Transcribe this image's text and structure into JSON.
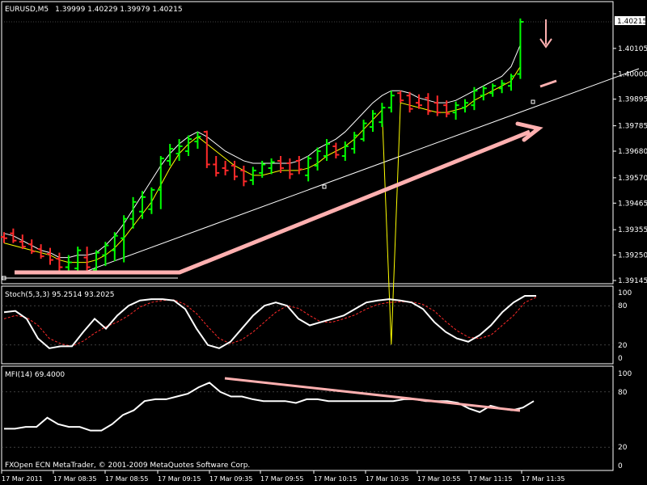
{
  "header": {
    "symbol": "EURUSD,M5",
    "ohlc": "1.39999 1.40229 1.39979 1.40215"
  },
  "current_price_label": "1.40215",
  "footer": "FXOpen ECN MetaTrader, © 2001-2009 MetaQuotes Software Corp.",
  "colors": {
    "up": "#00ff00",
    "down": "#ff2a2a",
    "ma_fast": "#ffff00",
    "ma_slow": "#ffffff",
    "stoch_main": "#ffffff",
    "stoch_signal": "#ff2a2a",
    "annotation": "#ffb0b0",
    "grid_border": "#ffffff"
  },
  "chart_data": [
    {
      "type": "candlestick",
      "panel": "main",
      "title": "EURUSD,M5",
      "y_ticks": [
        "1.40215",
        "1.40105",
        "1.40000",
        "1.39895",
        "1.39785",
        "1.39680",
        "1.39570",
        "1.39465",
        "1.39355",
        "1.39250",
        "1.39145"
      ],
      "ylim": [
        1.39145,
        1.40215
      ],
      "x_ticks": [
        "17 Mar 2011",
        "17 Mar 08:35",
        "17 Mar 08:55",
        "17 Mar 09:15",
        "17 Mar 09:35",
        "17 Mar 09:55",
        "17 Mar 10:15",
        "17 Mar 10:35",
        "17 Mar 10:55",
        "17 Mar 11:15",
        "17 Mar 11:35"
      ],
      "bars": [
        {
          "x": 0,
          "o": 1.39325,
          "h": 1.39345,
          "l": 1.393,
          "c": 1.3932
        },
        {
          "x": 1,
          "o": 1.3934,
          "h": 1.3936,
          "l": 1.393,
          "c": 1.3931
        },
        {
          "x": 2,
          "o": 1.39305,
          "h": 1.39335,
          "l": 1.39275,
          "c": 1.39285
        },
        {
          "x": 3,
          "o": 1.39295,
          "h": 1.39315,
          "l": 1.39255,
          "c": 1.39265
        },
        {
          "x": 4,
          "o": 1.39275,
          "h": 1.39295,
          "l": 1.39235,
          "c": 1.39245
        },
        {
          "x": 5,
          "o": 1.39255,
          "h": 1.3928,
          "l": 1.3921,
          "c": 1.3923
        },
        {
          "x": 6,
          "o": 1.39235,
          "h": 1.3926,
          "l": 1.3917,
          "c": 1.392
        },
        {
          "x": 7,
          "o": 1.392,
          "h": 1.3925,
          "l": 1.3918,
          "c": 1.3922
        },
        {
          "x": 8,
          "o": 1.39195,
          "h": 1.39285,
          "l": 1.39185,
          "c": 1.3927
        },
        {
          "x": 9,
          "o": 1.3924,
          "h": 1.39285,
          "l": 1.39185,
          "c": 1.392
        },
        {
          "x": 10,
          "o": 1.3919,
          "h": 1.3927,
          "l": 1.39175,
          "c": 1.3926
        },
        {
          "x": 11,
          "o": 1.3925,
          "h": 1.39305,
          "l": 1.39205,
          "c": 1.3929
        },
        {
          "x": 12,
          "o": 1.3927,
          "h": 1.39345,
          "l": 1.39225,
          "c": 1.3933
        },
        {
          "x": 13,
          "o": 1.3932,
          "h": 1.39415,
          "l": 1.3922,
          "c": 1.394
        },
        {
          "x": 14,
          "o": 1.394,
          "h": 1.3949,
          "l": 1.3936,
          "c": 1.3947
        },
        {
          "x": 15,
          "o": 1.3943,
          "h": 1.39515,
          "l": 1.394,
          "c": 1.3949
        },
        {
          "x": 16,
          "o": 1.3944,
          "h": 1.3953,
          "l": 1.3942,
          "c": 1.3952
        },
        {
          "x": 17,
          "o": 1.3952,
          "h": 1.3966,
          "l": 1.3944,
          "c": 1.3965
        },
        {
          "x": 18,
          "o": 1.3964,
          "h": 1.3971,
          "l": 1.3962,
          "c": 1.3969
        },
        {
          "x": 19,
          "o": 1.3967,
          "h": 1.3973,
          "l": 1.3964,
          "c": 1.397
        },
        {
          "x": 20,
          "o": 1.3968,
          "h": 1.39745,
          "l": 1.3966,
          "c": 1.3973
        },
        {
          "x": 21,
          "o": 1.3972,
          "h": 1.3976,
          "l": 1.3969,
          "c": 1.3974
        },
        {
          "x": 22,
          "o": 1.3976,
          "h": 1.39765,
          "l": 1.3961,
          "c": 1.39625
        },
        {
          "x": 23,
          "o": 1.39625,
          "h": 1.3966,
          "l": 1.39575,
          "c": 1.3959
        },
        {
          "x": 24,
          "o": 1.3961,
          "h": 1.3964,
          "l": 1.3958,
          "c": 1.396
        },
        {
          "x": 25,
          "o": 1.3962,
          "h": 1.3964,
          "l": 1.3956,
          "c": 1.39575
        },
        {
          "x": 26,
          "o": 1.396,
          "h": 1.3962,
          "l": 1.39535,
          "c": 1.39555
        },
        {
          "x": 27,
          "o": 1.3956,
          "h": 1.39615,
          "l": 1.3954,
          "c": 1.396
        },
        {
          "x": 28,
          "o": 1.3959,
          "h": 1.3964,
          "l": 1.3957,
          "c": 1.39625
        },
        {
          "x": 29,
          "o": 1.3961,
          "h": 1.3965,
          "l": 1.39585,
          "c": 1.39635
        },
        {
          "x": 30,
          "o": 1.3964,
          "h": 1.3966,
          "l": 1.3959,
          "c": 1.3961
        },
        {
          "x": 31,
          "o": 1.3963,
          "h": 1.3965,
          "l": 1.39565,
          "c": 1.39585
        },
        {
          "x": 32,
          "o": 1.3964,
          "h": 1.3966,
          "l": 1.39585,
          "c": 1.39605
        },
        {
          "x": 33,
          "o": 1.3958,
          "h": 1.3966,
          "l": 1.39555,
          "c": 1.3965
        },
        {
          "x": 34,
          "o": 1.3962,
          "h": 1.39695,
          "l": 1.396,
          "c": 1.3968
        },
        {
          "x": 35,
          "o": 1.3966,
          "h": 1.3973,
          "l": 1.3964,
          "c": 1.3971
        },
        {
          "x": 36,
          "o": 1.397,
          "h": 1.39715,
          "l": 1.3965,
          "c": 1.39665
        },
        {
          "x": 37,
          "o": 1.3966,
          "h": 1.3972,
          "l": 1.3964,
          "c": 1.397
        },
        {
          "x": 38,
          "o": 1.3969,
          "h": 1.3976,
          "l": 1.3967,
          "c": 1.39745
        },
        {
          "x": 39,
          "o": 1.3973,
          "h": 1.3981,
          "l": 1.3972,
          "c": 1.39795
        },
        {
          "x": 40,
          "o": 1.3978,
          "h": 1.3985,
          "l": 1.3976,
          "c": 1.39835
        },
        {
          "x": 41,
          "o": 1.398,
          "h": 1.3988,
          "l": 1.3978,
          "c": 1.3986
        },
        {
          "x": 42,
          "o": 1.3986,
          "h": 1.3993,
          "l": 1.3984,
          "c": 1.3991
        },
        {
          "x": 43,
          "o": 1.3992,
          "h": 1.3993,
          "l": 1.3988,
          "c": 1.3989
        },
        {
          "x": 44,
          "o": 1.3991,
          "h": 1.39925,
          "l": 1.3984,
          "c": 1.39855
        },
        {
          "x": 45,
          "o": 1.3988,
          "h": 1.39915,
          "l": 1.39855,
          "c": 1.3987
        },
        {
          "x": 46,
          "o": 1.399,
          "h": 1.3992,
          "l": 1.3983,
          "c": 1.39845
        },
        {
          "x": 47,
          "o": 1.3988,
          "h": 1.3991,
          "l": 1.39825,
          "c": 1.3984
        },
        {
          "x": 48,
          "o": 1.3987,
          "h": 1.3989,
          "l": 1.3982,
          "c": 1.39835
        },
        {
          "x": 49,
          "o": 1.3984,
          "h": 1.39885,
          "l": 1.3981,
          "c": 1.3987
        },
        {
          "x": 50,
          "o": 1.3986,
          "h": 1.39895,
          "l": 1.3984,
          "c": 1.3988
        },
        {
          "x": 51,
          "o": 1.3987,
          "h": 1.39945,
          "l": 1.3985,
          "c": 1.3993
        },
        {
          "x": 52,
          "o": 1.3991,
          "h": 1.3995,
          "l": 1.3989,
          "c": 1.3994
        },
        {
          "x": 53,
          "o": 1.3992,
          "h": 1.3996,
          "l": 1.39905,
          "c": 1.3995
        },
        {
          "x": 54,
          "o": 1.3994,
          "h": 1.39975,
          "l": 1.3992,
          "c": 1.3996
        },
        {
          "x": 55,
          "o": 1.3995,
          "h": 1.4,
          "l": 1.3993,
          "c": 1.3999
        },
        {
          "x": 56,
          "o": 1.39999,
          "h": 1.40229,
          "l": 1.39979,
          "c": 1.40215
        }
      ],
      "ma_fast": [
        1.393,
        1.3929,
        1.3928,
        1.3927,
        1.3926,
        1.3925,
        1.3923,
        1.3922,
        1.3922,
        1.3922,
        1.3923,
        1.3925,
        1.3928,
        1.3932,
        1.3937,
        1.3942,
        1.3947,
        1.3954,
        1.3961,
        1.3967,
        1.3971,
        1.3974,
        1.3971,
        1.3968,
        1.3965,
        1.3962,
        1.396,
        1.3958,
        1.3958,
        1.3959,
        1.396,
        1.396,
        1.396,
        1.3961,
        1.3963,
        1.3966,
        1.3968,
        1.397,
        1.3973,
        1.3977,
        1.3981,
        1.3985,
        1.3888,
        1.3988,
        1.3987,
        1.3986,
        1.3985,
        1.3984,
        1.3984,
        1.3985,
        1.3986,
        1.3989,
        1.3991,
        1.3993,
        1.3995,
        1.3997,
        1.4003
      ],
      "ma_slow": [
        1.3934,
        1.3933,
        1.3931,
        1.3929,
        1.3927,
        1.3926,
        1.3924,
        1.3924,
        1.3925,
        1.3925,
        1.3926,
        1.3929,
        1.3933,
        1.3938,
        1.3944,
        1.395,
        1.3956,
        1.3962,
        1.3967,
        1.3971,
        1.3974,
        1.3976,
        1.3974,
        1.3971,
        1.3968,
        1.3966,
        1.3964,
        1.3963,
        1.3963,
        1.3963,
        1.3963,
        1.3963,
        1.3964,
        1.3966,
        1.3969,
        1.3971,
        1.3973,
        1.3976,
        1.398,
        1.3984,
        1.3988,
        1.3991,
        1.3993,
        1.3993,
        1.3992,
        1.399,
        1.3989,
        1.3988,
        1.3988,
        1.3989,
        1.3991,
        1.3993,
        1.3995,
        1.3997,
        1.3999,
        1.4003,
        1.4012
      ]
    },
    {
      "type": "line",
      "panel": "stochastic",
      "title": "Stoch(5,3,3) 95.2514 93.2025",
      "y_ticks": [
        "100",
        "80",
        "20",
        "0"
      ],
      "ylim": [
        0,
        100
      ],
      "series": [
        {
          "name": "main",
          "values": [
            70,
            72,
            60,
            30,
            15,
            18,
            18,
            40,
            60,
            45,
            65,
            80,
            88,
            90,
            90,
            88,
            75,
            45,
            20,
            15,
            25,
            45,
            65,
            80,
            85,
            80,
            60,
            50,
            55,
            60,
            65,
            75,
            85,
            88,
            90,
            88,
            85,
            75,
            55,
            40,
            30,
            25,
            35,
            50,
            70,
            85,
            95,
            95
          ]
        },
        {
          "name": "signal",
          "values": [
            60,
            65,
            62,
            50,
            30,
            22,
            18,
            26,
            38,
            48,
            55,
            65,
            78,
            85,
            88,
            89,
            82,
            68,
            48,
            30,
            22,
            28,
            40,
            55,
            70,
            80,
            76,
            65,
            55,
            55,
            60,
            66,
            75,
            82,
            85,
            86,
            86,
            82,
            72,
            56,
            42,
            32,
            30,
            35,
            50,
            65,
            85,
            93
          ]
        }
      ]
    },
    {
      "type": "line",
      "panel": "mfi",
      "title": "MFI(14) 69.4000",
      "y_ticks": [
        "100",
        "80",
        "20",
        "0"
      ],
      "ylim": [
        0,
        100
      ],
      "series": [
        {
          "name": "MFI(14)",
          "values": [
            40,
            40,
            42,
            42,
            52,
            45,
            42,
            42,
            38,
            38,
            45,
            55,
            60,
            70,
            72,
            72,
            75,
            78,
            85,
            90,
            80,
            75,
            75,
            72,
            70,
            70,
            70,
            68,
            72,
            72,
            70,
            70,
            70,
            70,
            70,
            70,
            70,
            72,
            72,
            70,
            70,
            70,
            68,
            62,
            58,
            65,
            62,
            60,
            63,
            70
          ]
        }
      ]
    }
  ]
}
